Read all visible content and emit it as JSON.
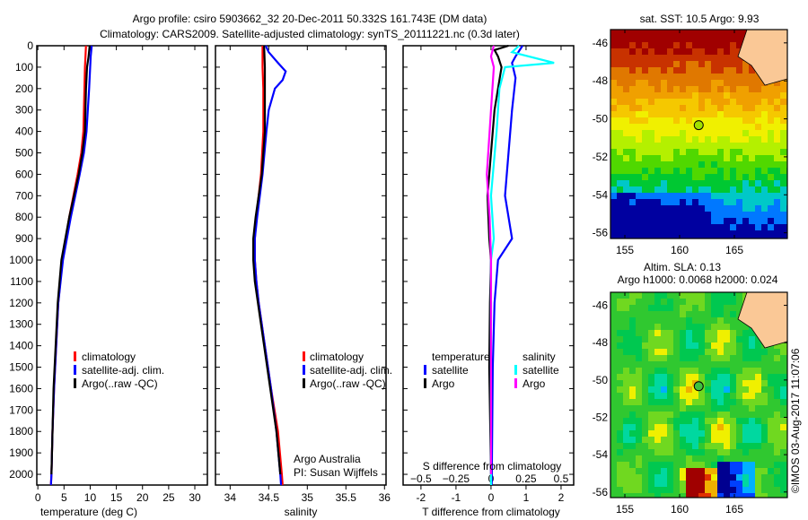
{
  "title_line1": "Argo profile: csiro 5903662_32 20-Dec-2011 50.332S 161.743E (DM data)",
  "title_line2": "Climatology: CARS2009. Satellite-adjusted climatology: synTS_20111221.nc (0.3d later)",
  "colors": {
    "climatology": "#ff0000",
    "satellite": "#0000ff",
    "argo": "#000000",
    "sal_satellite": "#00ffff",
    "sal_argo": "#ff00ff"
  },
  "chart_data": [
    {
      "type": "line",
      "xlabel": "temperature (deg C)",
      "xlim": [
        -0.2,
        32.4
      ],
      "ylim": [
        0,
        2050
      ],
      "yticks": [
        0,
        100,
        200,
        300,
        400,
        500,
        600,
        700,
        800,
        900,
        1000,
        1100,
        1200,
        1300,
        1400,
        1500,
        1600,
        1700,
        1800,
        1900,
        2000
      ],
      "xticks": [
        0,
        5,
        10,
        15,
        20,
        25,
        30
      ],
      "legend": [
        "climatology",
        "satellite-adj. clim.",
        "Argo(..raw -QC)"
      ],
      "series": [
        {
          "name": "climatology",
          "depth": [
            0,
            100,
            200,
            400,
            500,
            600,
            800,
            1000,
            1200,
            1400,
            1600,
            1800,
            2000,
            2050
          ],
          "values": [
            9.2,
            9.0,
            8.9,
            8.7,
            8.3,
            7.6,
            6.0,
            4.7,
            3.9,
            3.5,
            3.1,
            2.8,
            2.6,
            2.5
          ]
        },
        {
          "name": "satellite-adj. clim.",
          "depth": [
            0,
            50,
            100,
            200,
            400,
            500,
            600,
            800,
            1000,
            1200,
            1400,
            1600,
            1800,
            2000,
            2050
          ],
          "values": [
            10.3,
            10.1,
            10.0,
            9.8,
            9.3,
            8.8,
            8.0,
            6.3,
            4.8,
            3.9,
            3.5,
            3.1,
            2.8,
            2.6,
            2.5
          ]
        },
        {
          "name": "Argo(..raw -QC)",
          "depth": [
            0,
            50,
            100,
            200,
            400,
            500,
            600,
            800,
            1000,
            1200,
            1400,
            1600,
            1800,
            2000
          ],
          "values": [
            9.9,
            9.7,
            9.4,
            9.2,
            9.0,
            8.5,
            7.8,
            6.0,
            4.5,
            3.8,
            3.4,
            3.0,
            2.8,
            2.6
          ]
        }
      ]
    },
    {
      "type": "line",
      "xlabel": "salinity",
      "xlim": [
        33.81,
        36.02
      ],
      "ylim": [
        0,
        2050
      ],
      "xticks": [
        34,
        34.5,
        35,
        35.5,
        36
      ],
      "legend": [
        "climatology",
        "satellite-adj. clim.",
        "Argo(..raw -QC)"
      ],
      "annotation": [
        "Argo Australia",
        "PI: Susan Wijffels"
      ],
      "series": [
        {
          "name": "climatology",
          "depth": [
            0,
            100,
            200,
            400,
            600,
            800,
            900,
            1000,
            1100,
            1200,
            1400,
            1600,
            1800,
            2000,
            2050
          ],
          "values": [
            34.42,
            34.42,
            34.43,
            34.43,
            34.4,
            34.34,
            34.32,
            34.32,
            34.34,
            34.37,
            34.45,
            34.53,
            34.62,
            34.67,
            34.68
          ]
        },
        {
          "name": "satellite-adj. clim.",
          "depth": [
            0,
            30,
            80,
            120,
            160,
            200,
            300,
            400,
            600,
            800,
            900,
            1000,
            1100,
            1200,
            1400,
            1600,
            1800,
            2000,
            2050
          ],
          "values": [
            34.46,
            34.5,
            34.62,
            34.72,
            34.68,
            34.58,
            34.5,
            34.47,
            34.42,
            34.35,
            34.32,
            34.32,
            34.34,
            34.37,
            34.45,
            34.53,
            34.6,
            34.65,
            34.66
          ]
        },
        {
          "name": "Argo(..raw -QC)",
          "depth": [
            0,
            100,
            200,
            400,
            600,
            800,
            900,
            1000,
            1100,
            1200,
            1400,
            1600,
            1800,
            2000
          ],
          "values": [
            34.44,
            34.45,
            34.45,
            34.45,
            34.41,
            34.33,
            34.3,
            34.3,
            34.32,
            34.36,
            34.44,
            34.52,
            34.6,
            34.65
          ]
        }
      ]
    },
    {
      "type": "line",
      "xlabel": "T difference from climatology",
      "xlabel2": "S difference from climatology",
      "xlim": [
        -2.51,
        2.36
      ],
      "ylim": [
        0,
        2050
      ],
      "xticks": [
        -2,
        -1,
        0,
        1,
        2
      ],
      "xticks2": [
        -0.5,
        -0.25,
        0,
        0.25,
        0.5
      ],
      "legend": {
        "temperature": "temperature",
        "salinity": "salinity",
        "t_sat": "satellite",
        "t_argo": "Argo",
        "s_sat": "satellite",
        "s_argo": "Argo"
      },
      "series": [
        {
          "name": "temperature satellite",
          "depth": [
            0,
            50,
            80,
            150,
            300,
            500,
            700,
            800,
            900,
            1000,
            1200,
            1500,
            2050
          ],
          "values": [
            0.9,
            0.7,
            0.6,
            0.7,
            0.6,
            0.5,
            0.4,
            0.5,
            0.6,
            0.2,
            0.1,
            0.05,
            0.02
          ]
        },
        {
          "name": "temperature Argo",
          "depth": [
            0,
            20,
            50,
            100,
            300,
            500,
            700,
            900,
            1000,
            1200,
            1500,
            2000
          ],
          "values": [
            0.5,
            0.1,
            0.2,
            0.3,
            0.1,
            0.0,
            -0.1,
            -0.05,
            0.0,
            -0.03,
            -0.05,
            0.0
          ]
        },
        {
          "name": "salinity satellite",
          "depth": [
            0,
            30,
            80,
            100,
            200,
            400,
            700,
            900,
            1000,
            1200,
            1500,
            2050
          ],
          "values": [
            0.2,
            0.15,
            0.45,
            0.1,
            0.06,
            0.04,
            0.0,
            0.02,
            0.0,
            0.0,
            0.0,
            0.0
          ]
        },
        {
          "name": "salinity Argo",
          "depth": [
            0,
            50,
            100,
            300,
            500,
            600,
            800,
            1000,
            1200,
            1500,
            2000
          ],
          "values": [
            0.02,
            0.0,
            0.02,
            0.0,
            -0.02,
            -0.03,
            -0.01,
            0.0,
            0.0,
            0.0,
            0.0
          ]
        }
      ]
    }
  ],
  "maps": [
    {
      "title": "sat. SST: 10.5 Argo: 9.93",
      "lon_ticks": [
        155,
        160,
        165
      ],
      "lat_ticks": [
        -46,
        -48,
        -50,
        -52,
        -54,
        -56
      ],
      "argo_lon": 161.743,
      "argo_lat": -50.332
    },
    {
      "title": "Altim. SLA: 0.13",
      "subtitle": "Argo h1000: 0.0068 h2000: 0.024",
      "lon_ticks": [
        155,
        160,
        165
      ],
      "lat_ticks": [
        -46,
        -48,
        -50,
        -52,
        -54,
        -56
      ],
      "argo_lon": 161.743,
      "argo_lat": -50.332
    }
  ],
  "credit": "©IMOS 03-Aug-2017 11:07:06"
}
